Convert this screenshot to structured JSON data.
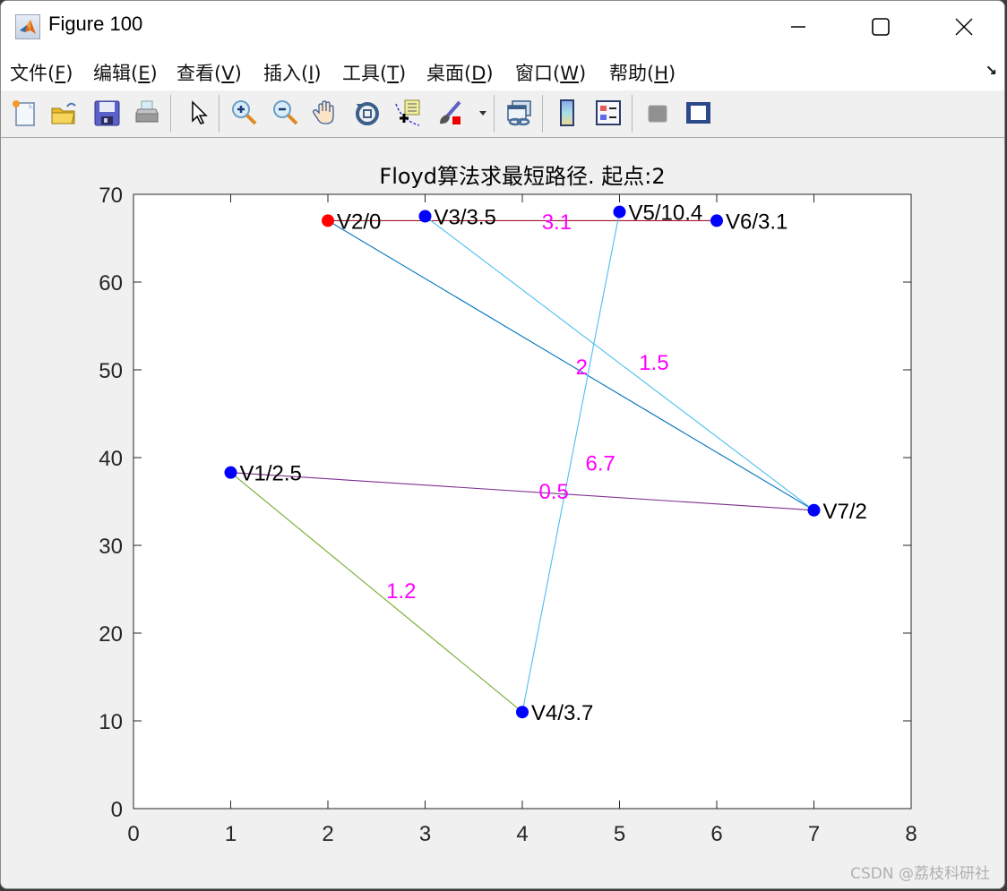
{
  "window": {
    "title": "Figure 100",
    "controls": {
      "minimize": "minimize",
      "maximize": "maximize",
      "close": "close"
    }
  },
  "menubar": {
    "items": [
      {
        "label": "文件(",
        "key": "F",
        "suffix": ")"
      },
      {
        "label": "编辑(",
        "key": "E",
        "suffix": ")"
      },
      {
        "label": "查看(",
        "key": "V",
        "suffix": ")"
      },
      {
        "label": "插入(",
        "key": "I",
        "suffix": ")"
      },
      {
        "label": "工具(",
        "key": "T",
        "suffix": ")"
      },
      {
        "label": "桌面(",
        "key": "D",
        "suffix": ")"
      },
      {
        "label": "窗口(",
        "key": "W",
        "suffix": ")"
      },
      {
        "label": "帮助(",
        "key": "H",
        "suffix": ")"
      }
    ],
    "dock_icon": "↘"
  },
  "toolbar": {
    "buttons": [
      {
        "name": "new-figure",
        "icon": "new-file-icon"
      },
      {
        "name": "open-file",
        "icon": "open-folder-icon"
      },
      {
        "name": "save-figure",
        "icon": "save-disk-icon"
      },
      {
        "name": "print-figure",
        "icon": "printer-icon"
      },
      {
        "name": "edit-plot",
        "icon": "arrow-cursor-icon"
      },
      {
        "name": "zoom-in",
        "icon": "zoom-in-icon"
      },
      {
        "name": "zoom-out",
        "icon": "zoom-out-icon"
      },
      {
        "name": "pan",
        "icon": "hand-icon"
      },
      {
        "name": "rotate-3d",
        "icon": "rotate-3d-icon"
      },
      {
        "name": "data-cursor",
        "icon": "data-cursor-icon"
      },
      {
        "name": "brush",
        "icon": "brush-icon"
      },
      {
        "name": "link-plot",
        "icon": "link-plot-icon"
      },
      {
        "name": "insert-colorbar",
        "icon": "colorbar-icon"
      },
      {
        "name": "insert-legend",
        "icon": "legend-icon"
      },
      {
        "name": "hide-plot-tools",
        "icon": "hide-tools-icon"
      },
      {
        "name": "show-plot-tools",
        "icon": "show-tools-icon"
      }
    ]
  },
  "watermark": "CSDN @荔枝科研社",
  "chart_data": {
    "type": "scatter",
    "title": "Floyd算法求最短路径. 起点:2",
    "xlabel": "",
    "ylabel": "",
    "xlim": [
      0,
      8
    ],
    "ylim": [
      0,
      70
    ],
    "xticks": [
      0,
      1,
      2,
      3,
      4,
      5,
      6,
      7,
      8
    ],
    "yticks": [
      0,
      10,
      20,
      30,
      40,
      50,
      60,
      70
    ],
    "grid": false,
    "legend": null,
    "start_node": 2,
    "nodes": [
      {
        "id": 1,
        "label": "V1/2.5",
        "x": 1,
        "y": 38.3,
        "dist": 2.5,
        "color": "#0000ff"
      },
      {
        "id": 2,
        "label": "V2/0",
        "x": 2,
        "y": 67,
        "dist": 0,
        "color": "#ff0000"
      },
      {
        "id": 3,
        "label": "V3/3.5",
        "x": 3,
        "y": 67.5,
        "dist": 3.5,
        "color": "#0000ff"
      },
      {
        "id": 4,
        "label": "V4/3.7",
        "x": 4,
        "y": 11,
        "dist": 3.7,
        "color": "#0000ff"
      },
      {
        "id": 5,
        "label": "V5/10.4",
        "x": 5,
        "y": 68,
        "dist": 10.4,
        "color": "#0000ff"
      },
      {
        "id": 6,
        "label": "V6/3.1",
        "x": 6,
        "y": 67,
        "dist": 3.1,
        "color": "#0000ff"
      },
      {
        "id": 7,
        "label": "V7/2",
        "x": 7,
        "y": 34,
        "dist": 2,
        "color": "#0000ff"
      }
    ],
    "edges": [
      {
        "from": 2,
        "to": 6,
        "weight": "3.1",
        "color": "#a2142f",
        "label_x": 4.2,
        "label_y": 66
      },
      {
        "from": 2,
        "to": 7,
        "weight": "2",
        "color": "#0072bd",
        "label_x": 4.55,
        "label_y": 49.5
      },
      {
        "from": 3,
        "to": 7,
        "weight": "1.5",
        "color": "#4dbeee",
        "label_x": 5.2,
        "label_y": 50
      },
      {
        "from": 5,
        "to": 4,
        "weight": "6.7",
        "color": "#4dbeee",
        "label_x": 4.65,
        "label_y": 38.5
      },
      {
        "from": 1,
        "to": 7,
        "weight": "0.5",
        "color": "#7e2f8e",
        "label_x": 4.17,
        "label_y": 35.3
      },
      {
        "from": 1,
        "to": 4,
        "weight": "1.2",
        "color": "#77ac30",
        "label_x": 2.6,
        "label_y": 24
      }
    ],
    "edge_label_color": "#ff00ff"
  }
}
